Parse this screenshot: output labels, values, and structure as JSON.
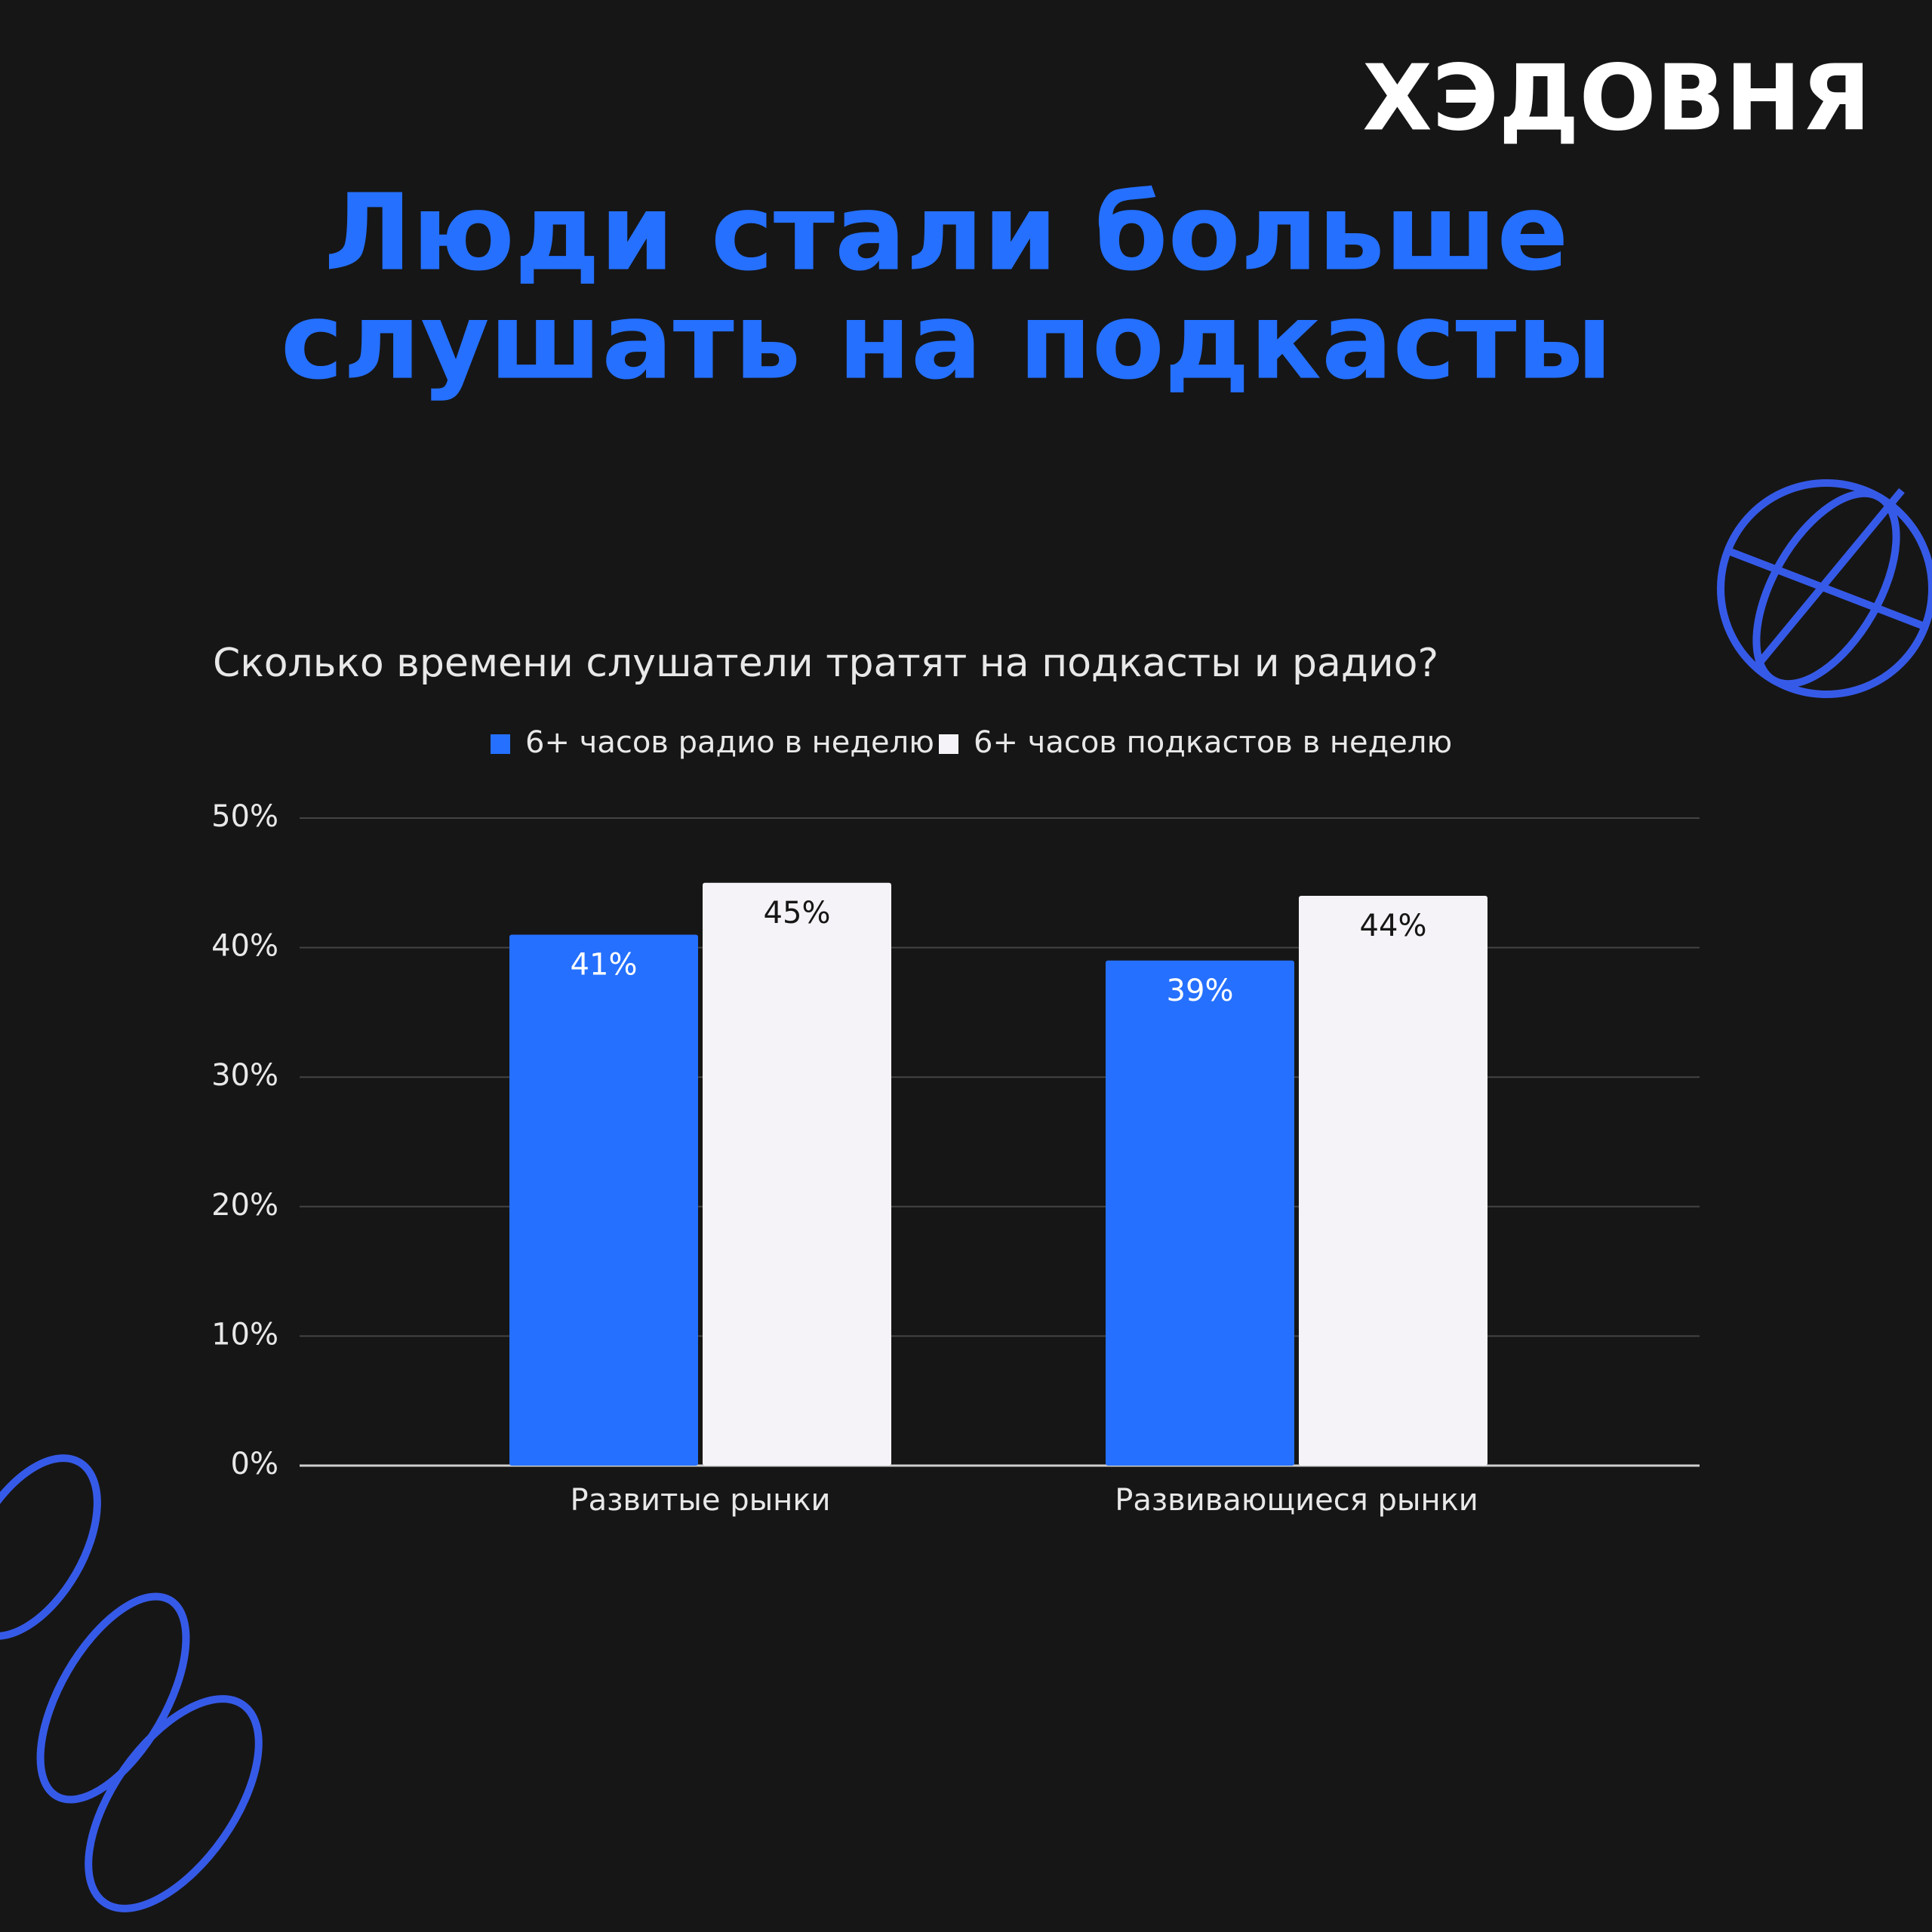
{
  "brand": "ХЭДОВНЯ",
  "chart_data": {
    "type": "bar",
    "title": [
      "Люди стали больше",
      "слушать на подкасты"
    ],
    "subtitle": "Сколько времени слушатели тратят на подкасты и радио?",
    "categories": [
      "Развитые рынки",
      "Развивающиеся рынки"
    ],
    "series": [
      {
        "name": "6+ часов радио в неделю",
        "color": "#2570ff",
        "values": [
          41,
          39
        ],
        "value_labels": [
          "41%",
          "39%"
        ]
      },
      {
        "name": "6+ часов подкастов в неделю",
        "color": "#f5f3f7",
        "values": [
          45,
          44
        ],
        "value_labels": [
          "45%",
          "44%"
        ]
      }
    ],
    "ylim": [
      0,
      50
    ],
    "yticks": [
      {
        "value": 0,
        "label": "0%"
      },
      {
        "value": 10,
        "label": "10%"
      },
      {
        "value": 20,
        "label": "20%"
      },
      {
        "value": 30,
        "label": "30%"
      },
      {
        "value": 40,
        "label": "40%"
      },
      {
        "value": 50,
        "label": "50%"
      }
    ],
    "grid": true,
    "legend": "top"
  }
}
